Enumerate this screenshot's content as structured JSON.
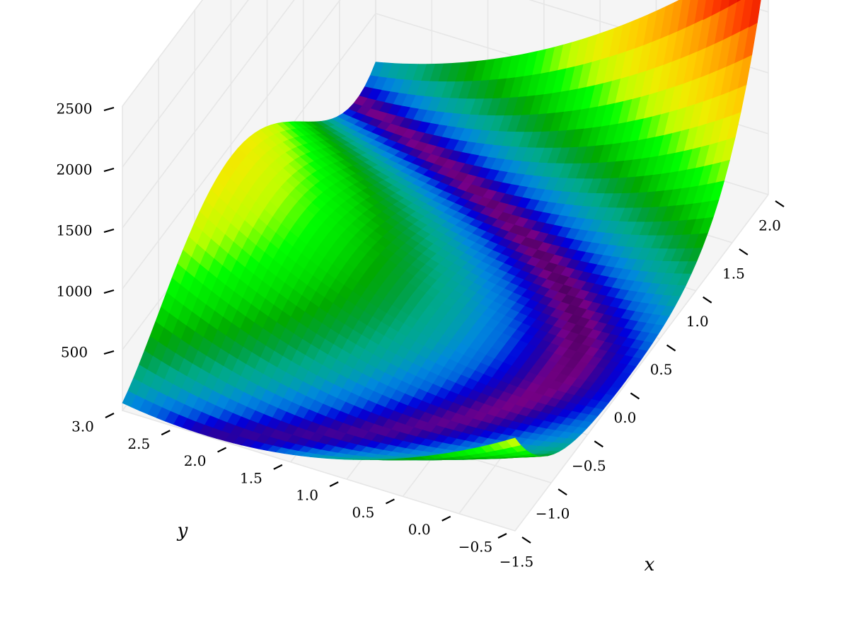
{
  "chart_data": {
    "type": "surface3d",
    "function": "z = (1 - x)^2 + 100 (y - x^2)^2",
    "x_range": [
      -1.5,
      2.0
    ],
    "y_range": [
      -0.5,
      3.0
    ],
    "zlim": [
      0,
      2500
    ],
    "xlabel": "x",
    "ylabel": "y",
    "zlabel": "",
    "x_ticks": [
      -1.5,
      -1.0,
      -0.5,
      0.0,
      0.5,
      1.0,
      1.5,
      2.0
    ],
    "y_ticks": [
      -0.5,
      0.0,
      0.5,
      1.0,
      1.5,
      2.0,
      2.5,
      3.0
    ],
    "z_ticks": [
      500,
      1000,
      1500,
      2000,
      2500
    ],
    "x_tick_labels": [
      "−1.5",
      "−1.0",
      "−0.5",
      "0.0",
      "0.5",
      "1.0",
      "1.5",
      "2.0"
    ],
    "y_tick_labels": [
      "−0.5",
      "0.0",
      "0.5",
      "1.0",
      "1.5",
      "2.0",
      "2.5",
      "3.0"
    ],
    "z_tick_labels": [
      "500",
      "1000",
      "1500",
      "2000",
      "2500"
    ],
    "colormap": "nipy_spectral",
    "grid": true,
    "pane_color": "#f5f5f5",
    "grid_color": "#e6e6e6"
  }
}
